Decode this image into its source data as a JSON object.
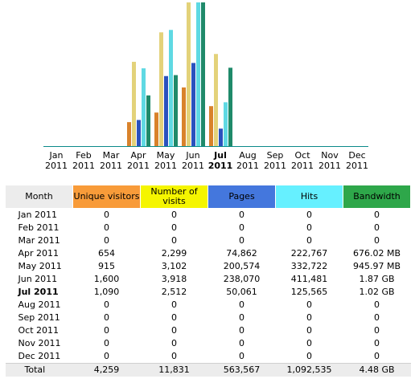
{
  "colors": {
    "month_header": "#ececec",
    "unique_visitors": "#f89b39",
    "visits": "#f5f500",
    "pages": "#4477dd",
    "hits": "#66f0ff",
    "bandwidth": "#2ea74a",
    "bar_unique": "#d9822b",
    "bar_visits": "#e3d27a",
    "bar_pages": "#2a52be",
    "bar_hits": "#5fd9e3",
    "bar_bandwidth": "#1f8a6a",
    "baseline": "#0a8a8a"
  },
  "table": {
    "headers": {
      "month": "Month",
      "unique": "Unique visitors",
      "visits": "Number of visits",
      "pages": "Pages",
      "hits": "Hits",
      "bandwidth": "Bandwidth"
    },
    "rows": [
      {
        "month": "Jan 2011",
        "unique": "0",
        "visits": "0",
        "pages": "0",
        "hits": "0",
        "bandwidth": "0"
      },
      {
        "month": "Feb 2011",
        "unique": "0",
        "visits": "0",
        "pages": "0",
        "hits": "0",
        "bandwidth": "0"
      },
      {
        "month": "Mar 2011",
        "unique": "0",
        "visits": "0",
        "pages": "0",
        "hits": "0",
        "bandwidth": "0"
      },
      {
        "month": "Apr 2011",
        "unique": "654",
        "visits": "2,299",
        "pages": "74,862",
        "hits": "222,767",
        "bandwidth": "676.02 MB"
      },
      {
        "month": "May 2011",
        "unique": "915",
        "visits": "3,102",
        "pages": "200,574",
        "hits": "332,722",
        "bandwidth": "945.97 MB"
      },
      {
        "month": "Jun 2011",
        "unique": "1,600",
        "visits": "3,918",
        "pages": "238,070",
        "hits": "411,481",
        "bandwidth": "1.87 GB"
      },
      {
        "month": "Jul 2011",
        "unique": "1,090",
        "visits": "2,512",
        "pages": "50,061",
        "hits": "125,565",
        "bandwidth": "1.02 GB"
      },
      {
        "month": "Aug 2011",
        "unique": "0",
        "visits": "0",
        "pages": "0",
        "hits": "0",
        "bandwidth": "0"
      },
      {
        "month": "Sep 2011",
        "unique": "0",
        "visits": "0",
        "pages": "0",
        "hits": "0",
        "bandwidth": "0"
      },
      {
        "month": "Oct 2011",
        "unique": "0",
        "visits": "0",
        "pages": "0",
        "hits": "0",
        "bandwidth": "0"
      },
      {
        "month": "Nov 2011",
        "unique": "0",
        "visits": "0",
        "pages": "0",
        "hits": "0",
        "bandwidth": "0"
      },
      {
        "month": "Dec 2011",
        "unique": "0",
        "visits": "0",
        "pages": "0",
        "hits": "0",
        "bandwidth": "0"
      }
    ],
    "total": {
      "month": "Total",
      "unique": "4,259",
      "visits": "11,831",
      "pages": "563,567",
      "hits": "1,092,535",
      "bandwidth": "4.48 GB"
    }
  },
  "chart_data": {
    "type": "bar",
    "categories": [
      {
        "month": "Jan",
        "year": "2011"
      },
      {
        "month": "Feb",
        "year": "2011"
      },
      {
        "month": "Mar",
        "year": "2011"
      },
      {
        "month": "Apr",
        "year": "2011"
      },
      {
        "month": "May",
        "year": "2011"
      },
      {
        "month": "Jun",
        "year": "2011"
      },
      {
        "month": "Jul",
        "year": "2011",
        "current": true
      },
      {
        "month": "Aug",
        "year": "2011"
      },
      {
        "month": "Sep",
        "year": "2011"
      },
      {
        "month": "Oct",
        "year": "2011"
      },
      {
        "month": "Nov",
        "year": "2011"
      },
      {
        "month": "Dec",
        "year": "2011"
      }
    ],
    "series": [
      {
        "name": "Unique visitors",
        "key": "unique",
        "values": [
          0,
          0,
          0,
          654,
          915,
          1600,
          1090,
          0,
          0,
          0,
          0,
          0
        ]
      },
      {
        "name": "Number of visits",
        "key": "visits",
        "values": [
          0,
          0,
          0,
          2299,
          3102,
          3918,
          2512,
          0,
          0,
          0,
          0,
          0
        ]
      },
      {
        "name": "Pages",
        "key": "pages",
        "values": [
          0,
          0,
          0,
          74862,
          200574,
          238070,
          50061,
          0,
          0,
          0,
          0,
          0
        ]
      },
      {
        "name": "Hits",
        "key": "hits",
        "values": [
          0,
          0,
          0,
          222767,
          332722,
          411481,
          125565,
          0,
          0,
          0,
          0,
          0
        ]
      },
      {
        "name": "Bandwidth",
        "key": "bandwidth",
        "unit": "GB",
        "values": [
          0,
          0,
          0,
          0.66,
          0.924,
          1.87,
          1.02,
          0,
          0,
          0,
          0,
          0
        ]
      }
    ],
    "scale_groups": [
      [
        "unique",
        "visits"
      ],
      [
        "pages",
        "hits"
      ],
      [
        "bandwidth"
      ]
    ],
    "legend": "none",
    "grid": false
  }
}
